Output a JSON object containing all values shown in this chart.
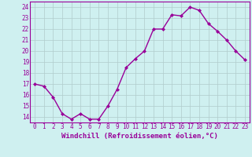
{
  "x": [
    0,
    1,
    2,
    3,
    4,
    5,
    6,
    7,
    8,
    9,
    10,
    11,
    12,
    13,
    14,
    15,
    16,
    17,
    18,
    19,
    20,
    21,
    22,
    23
  ],
  "y": [
    17.0,
    16.8,
    15.8,
    14.3,
    13.8,
    14.3,
    13.8,
    13.8,
    15.0,
    16.5,
    18.5,
    19.3,
    20.0,
    22.0,
    22.0,
    23.3,
    23.2,
    24.0,
    23.7,
    22.5,
    21.8,
    21.0,
    20.0,
    19.2
  ],
  "line_color": "#990099",
  "marker": "D",
  "marker_size": 2,
  "line_width": 1.0,
  "xlabel": "Windchill (Refroidissement éolien,°C)",
  "xlabel_color": "#990099",
  "xlabel_fontsize": 6.5,
  "bg_color": "#cff0f0",
  "grid_color": "#b0cccc",
  "tick_color": "#990099",
  "tick_fontsize": 5.5,
  "ylim": [
    13.5,
    24.5
  ],
  "yticks": [
    14,
    15,
    16,
    17,
    18,
    19,
    20,
    21,
    22,
    23,
    24
  ],
  "xlim": [
    -0.5,
    23.5
  ],
  "spine_color": "#990099"
}
